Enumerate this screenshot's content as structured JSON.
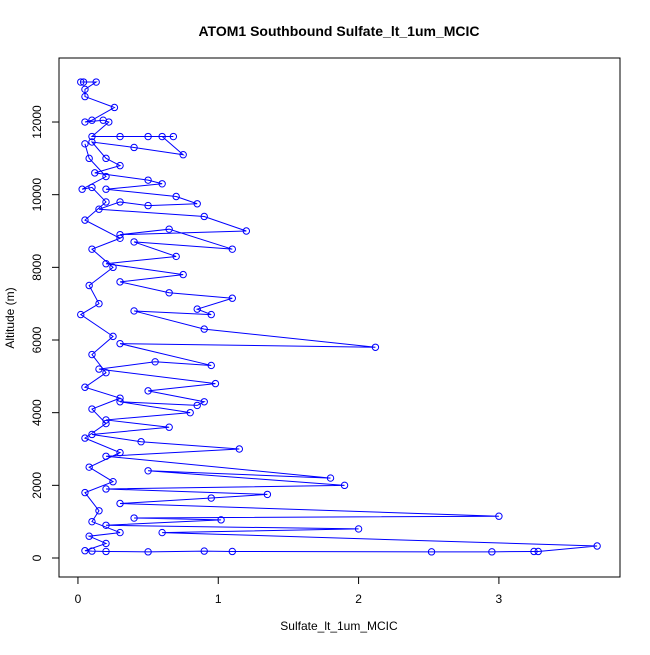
{
  "chart_data": {
    "type": "line",
    "title": "ATOM1 Southbound Sulfate_lt_1um_MCIC",
    "x_label": "Sulfate_lt_1um_MCIC",
    "y_label": "Altitude (m)",
    "color": "#0000ff",
    "markers": true,
    "x": [
      0.02,
      0.04,
      0.13,
      0.05,
      0.05,
      0.26,
      0.1,
      0.05,
      0.18,
      0.22,
      0.1,
      0.3,
      0.5,
      0.68,
      0.6,
      0.75,
      0.4,
      0.1,
      0.2,
      0.3,
      0.12,
      0.5,
      0.6,
      0.2,
      0.7,
      0.85,
      0.5,
      0.3,
      0.15,
      0.9,
      1.2,
      0.3,
      0.65,
      1.1,
      0.4,
      0.7,
      0.2,
      0.75,
      0.3,
      0.65,
      1.1,
      0.85,
      0.95,
      0.4,
      0.9,
      2.12,
      0.3,
      0.95,
      0.55,
      0.15,
      0.98,
      0.5,
      0.9,
      0.85,
      0.3,
      0.8,
      0.2,
      0.65,
      0.1,
      0.45,
      1.15,
      0.2,
      1.8,
      0.5,
      1.9,
      0.2,
      1.35,
      0.95,
      0.3,
      3.0,
      0.4,
      1.02,
      0.2,
      2.0,
      0.6,
      3.7,
      3.28,
      3.25,
      2.95,
      2.52,
      1.1,
      0.9,
      0.5,
      0.2,
      0.1,
      0.05,
      0.2,
      0.08,
      0.3,
      0.1,
      0.15,
      0.05,
      0.25,
      0.08,
      0.3,
      0.05,
      0.2,
      0.1,
      0.3,
      0.05,
      0.2,
      0.1,
      0.25,
      0.02,
      0.15,
      0.08,
      0.25,
      0.1,
      0.3,
      0.05,
      0.2,
      0.1,
      0.03,
      0.2,
      0.08,
      0.05
    ],
    "values": [
      13100,
      13100,
      13100,
      12900,
      12700,
      12400,
      12050,
      12000,
      12050,
      12000,
      11600,
      11600,
      11600,
      11600,
      11600,
      11100,
      11300,
      11450,
      11000,
      10800,
      10600,
      10400,
      10300,
      10150,
      9950,
      9750,
      9700,
      9800,
      9600,
      9400,
      9000,
      8900,
      9050,
      8500,
      8700,
      8300,
      8100,
      7800,
      7600,
      7300,
      7150,
      6850,
      6700,
      6800,
      6300,
      5800,
      5900,
      5300,
      5400,
      5200,
      4800,
      4600,
      4300,
      4200,
      4300,
      4000,
      3800,
      3600,
      3400,
      3200,
      3000,
      2800,
      2200,
      2400,
      2000,
      1900,
      1750,
      1650,
      1500,
      1150,
      1100,
      1050,
      900,
      800,
      700,
      330,
      180,
      180,
      170,
      170,
      180,
      190,
      170,
      180,
      190,
      200,
      400,
      600,
      700,
      1000,
      1300,
      1800,
      2100,
      2500,
      2900,
      3300,
      3700,
      4100,
      4400,
      4700,
      5100,
      5600,
      6100,
      6700,
      7000,
      7500,
      8000,
      8500,
      8800,
      9300,
      9800,
      10200,
      10150,
      10500,
      11000,
      11400
    ],
    "xlim": [
      -0.135,
      3.863
    ],
    "ylim": [
      -523,
      13762
    ],
    "xticks": [
      0,
      1,
      2,
      3
    ],
    "yticks": [
      0,
      2000,
      4000,
      6000,
      8000,
      10000,
      12000
    ]
  }
}
